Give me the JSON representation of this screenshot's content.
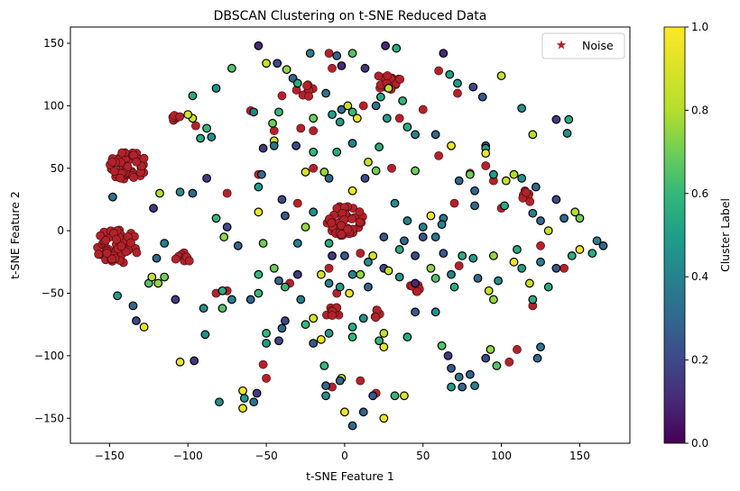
{
  "chart_data": {
    "type": "scatter",
    "title": "DBSCAN Clustering on t-SNE Reduced Data",
    "xlabel": "t-SNE Feature 1",
    "ylabel": "t-SNE Feature 2",
    "xlim": [
      -175,
      182
    ],
    "ylim": [
      -170,
      163
    ],
    "x_ticks": [
      -150,
      -100,
      -50,
      0,
      50,
      100,
      150
    ],
    "x_tick_labels": [
      "−150",
      "−100",
      "−50",
      "0",
      "50",
      "100",
      "150"
    ],
    "y_ticks": [
      -150,
      -100,
      -50,
      0,
      50,
      100,
      150
    ],
    "y_tick_labels": [
      "−150",
      "−100",
      "−50",
      "0",
      "50",
      "100",
      "150"
    ],
    "grid": false,
    "legend": {
      "position": "top-right",
      "entries": [
        {
          "label": "Noise",
          "marker": "star",
          "color": "#b2222a"
        }
      ]
    },
    "colorbar": {
      "label": "Cluster Label",
      "range": [
        0,
        1
      ],
      "ticks": [
        0,
        0.2,
        0.4,
        0.6,
        0.8,
        1
      ],
      "tick_labels": [
        "0.0",
        "0.2",
        "0.4",
        "0.6",
        "0.8",
        "1.0"
      ],
      "colormap": "viridis"
    },
    "noise_color": "#b2222a",
    "noise_clusters": [
      {
        "center": [
          -138,
          52
        ],
        "spread": 12,
        "count": 55
      },
      {
        "center": [
          -145,
          -12
        ],
        "spread": 14,
        "count": 55
      },
      {
        "center": [
          0,
          8
        ],
        "spread": 12,
        "count": 55
      },
      {
        "center": [
          28,
          120
        ],
        "spread": 8,
        "count": 18
      },
      {
        "center": [
          -25,
          112
        ],
        "spread": 6,
        "count": 10
      },
      {
        "center": [
          -103,
          -22
        ],
        "spread": 5,
        "count": 10
      },
      {
        "center": [
          118,
          28
        ],
        "spread": 5,
        "count": 9
      },
      {
        "center": [
          45,
          -46
        ],
        "spread": 4,
        "count": 7
      },
      {
        "center": [
          -8,
          -65
        ],
        "spread": 5,
        "count": 9
      },
      {
        "center": [
          20,
          -66
        ],
        "spread": 4,
        "count": 6
      },
      {
        "center": [
          -108,
          92
        ],
        "spread": 4,
        "count": 6
      }
    ],
    "noise_points": [
      [
        -10,
        142
      ],
      [
        -8,
        130
      ],
      [
        12,
        100
      ],
      [
        35,
        90
      ],
      [
        60,
        128
      ],
      [
        72,
        110
      ],
      [
        95,
        40
      ],
      [
        140,
        -30
      ],
      [
        -75,
        30
      ],
      [
        -20,
        50
      ],
      [
        30,
        50
      ],
      [
        -30,
        22
      ],
      [
        -10,
        -30
      ],
      [
        -5,
        -50
      ],
      [
        10,
        -120
      ],
      [
        20,
        -130
      ],
      [
        -8,
        -125
      ],
      [
        -50,
        -118
      ],
      [
        -52,
        -107
      ],
      [
        -55,
        45
      ],
      [
        -60,
        96
      ],
      [
        -45,
        80
      ],
      [
        -40,
        108
      ],
      [
        -28,
        82
      ],
      [
        105,
        -105
      ],
      [
        110,
        -95
      ],
      [
        120,
        -60
      ],
      [
        -95,
        84
      ],
      [
        80,
        46
      ],
      [
        90,
        52
      ],
      [
        -75,
        -48
      ],
      [
        -82,
        -50
      ],
      [
        50,
        97
      ],
      [
        60,
        60
      ],
      [
        73,
        -28
      ],
      [
        -20,
        80
      ],
      [
        -35,
        -42
      ],
      [
        10,
        -18
      ],
      [
        70,
        22
      ],
      [
        100,
        18
      ],
      [
        125,
        -12
      ]
    ],
    "cluster_points": [
      [
        -55,
        148,
        0.1
      ],
      [
        -43,
        134,
        0.2
      ],
      [
        -37,
        129,
        0.75
      ],
      [
        -33,
        122,
        0.3
      ],
      [
        -30,
        118,
        0.55
      ],
      [
        -50,
        134,
        0.85
      ],
      [
        -72,
        130,
        0.65
      ],
      [
        -82,
        114,
        0.45
      ],
      [
        -97,
        108,
        0.55
      ],
      [
        -88,
        82,
        0.6
      ],
      [
        -97,
        90,
        0.85
      ],
      [
        -85,
        75,
        0.45
      ],
      [
        -100,
        93,
        0.9
      ],
      [
        -92,
        74,
        0.55
      ],
      [
        -58,
        95,
        0.4
      ],
      [
        -42,
        95,
        0.6
      ],
      [
        -46,
        86,
        0.7
      ],
      [
        -45,
        72,
        0.85
      ],
      [
        -52,
        66,
        0.15
      ],
      [
        -31,
        68,
        0.2
      ],
      [
        -22,
        142,
        0.4
      ],
      [
        -5,
        140,
        0.3
      ],
      [
        -2,
        132,
        0.1
      ],
      [
        5,
        142,
        0.65
      ],
      [
        13,
        130,
        0.15
      ],
      [
        33,
        146,
        0.55
      ],
      [
        26,
        148,
        0.1
      ],
      [
        -12,
        110,
        0.35
      ],
      [
        -2,
        97,
        0.3
      ],
      [
        2,
        100,
        0.85
      ],
      [
        5,
        95,
        0.6
      ],
      [
        -8,
        93,
        0.5
      ],
      [
        -20,
        90,
        0.7
      ],
      [
        8,
        90,
        0.95
      ],
      [
        -3,
        87,
        0.5
      ],
      [
        28,
        114,
        0.8
      ],
      [
        23,
        107,
        0.55
      ],
      [
        37,
        104,
        0.6
      ],
      [
        20,
        100,
        0.35
      ],
      [
        27,
        90,
        0.5
      ],
      [
        40,
        83,
        0.55
      ],
      [
        63,
        142,
        0.1
      ],
      [
        67,
        125,
        0.5
      ],
      [
        72,
        118,
        0.5
      ],
      [
        82,
        115,
        0.2
      ],
      [
        100,
        124,
        0.85
      ],
      [
        88,
        107,
        0.25
      ],
      [
        113,
        98,
        0.45
      ],
      [
        135,
        89,
        0.15
      ],
      [
        143,
        89,
        0.55
      ],
      [
        142,
        78,
        0.45
      ],
      [
        120,
        77,
        0.8
      ],
      [
        68,
        68,
        0.95
      ],
      [
        90,
        68,
        0.3
      ],
      [
        90,
        66,
        0.5
      ],
      [
        90,
        62,
        0.95
      ],
      [
        58,
        77,
        0.3
      ],
      [
        45,
        77,
        0.4
      ],
      [
        22,
        67,
        0.55
      ],
      [
        15,
        55,
        0.85
      ],
      [
        -5,
        63,
        0.55
      ],
      [
        -20,
        63,
        0.6
      ],
      [
        5,
        70,
        0.4
      ],
      [
        -10,
        42,
        0.3
      ],
      [
        -13,
        47,
        0.75
      ],
      [
        -25,
        47,
        0.9
      ],
      [
        13,
        42,
        0.2
      ],
      [
        45,
        48,
        0.7
      ],
      [
        20,
        48,
        0.7
      ],
      [
        32,
        22,
        0.45
      ],
      [
        -40,
        25,
        0.2
      ],
      [
        -38,
        12,
        0.25
      ],
      [
        -20,
        15,
        0.45
      ],
      [
        -25,
        3,
        0.75
      ],
      [
        -55,
        15,
        0.95
      ],
      [
        -52,
        -10,
        0.7
      ],
      [
        -55,
        35,
        0.5
      ],
      [
        -53,
        45,
        0.3
      ],
      [
        -45,
        68,
        0.35
      ],
      [
        -75,
        3,
        0.2
      ],
      [
        -82,
        10,
        0.6
      ],
      [
        -77,
        -5,
        0.75
      ],
      [
        -68,
        -12,
        0.3
      ],
      [
        -55,
        -35,
        0.6
      ],
      [
        -45,
        -30,
        0.7
      ],
      [
        -38,
        -45,
        0.6
      ],
      [
        -30,
        -10,
        0.4
      ],
      [
        -28,
        -55,
        0.4
      ],
      [
        -15,
        -35,
        0.9
      ],
      [
        -3,
        -45,
        0.5
      ],
      [
        -10,
        -42,
        0.4
      ],
      [
        5,
        -35,
        0.4
      ],
      [
        10,
        -35,
        0.75
      ],
      [
        15,
        -45,
        0.3
      ],
      [
        3,
        -50,
        0.95
      ],
      [
        25,
        -30,
        0.2
      ],
      [
        35,
        -37,
        0.5
      ],
      [
        45,
        -42,
        0.1
      ],
      [
        38,
        -8,
        0.3
      ],
      [
        28,
        -32,
        0.85
      ],
      [
        55,
        -30,
        0.75
      ],
      [
        63,
        -18,
        0.25
      ],
      [
        58,
        -38,
        0.65
      ],
      [
        75,
        -20,
        0.55
      ],
      [
        68,
        -35,
        0.4
      ],
      [
        82,
        -22,
        0.5
      ],
      [
        85,
        -38,
        0.3
      ],
      [
        95,
        -20,
        0.75
      ],
      [
        98,
        -40,
        0.45
      ],
      [
        110,
        -15,
        0.55
      ],
      [
        113,
        -30,
        0.5
      ],
      [
        108,
        -25,
        0.95
      ],
      [
        125,
        -25,
        0.4
      ],
      [
        118,
        -42,
        0.85
      ],
      [
        120,
        -55,
        0.55
      ],
      [
        95,
        -55,
        0.75
      ],
      [
        92,
        -48,
        0.85
      ],
      [
        70,
        -45,
        0.55
      ],
      [
        58,
        -65,
        0.45
      ],
      [
        45,
        -65,
        0.25
      ],
      [
        40,
        -85,
        0.55
      ],
      [
        12,
        -70,
        0.45
      ],
      [
        5,
        -77,
        0.55
      ],
      [
        5,
        -85,
        0.6
      ],
      [
        -10,
        -82,
        0.5
      ],
      [
        -25,
        -75,
        0.6
      ],
      [
        -20,
        -70,
        0.9
      ],
      [
        -20,
        -90,
        0.25
      ],
      [
        -38,
        -72,
        0.2
      ],
      [
        -40,
        -78,
        0.3
      ],
      [
        -42,
        -88,
        0.2
      ],
      [
        -50,
        -82,
        0.6
      ],
      [
        -50,
        -90,
        0.5
      ],
      [
        -78,
        -62,
        0.65
      ],
      [
        -72,
        -55,
        0.4
      ],
      [
        -78,
        -48,
        0.55
      ],
      [
        -90,
        -62,
        0.45
      ],
      [
        -108,
        -55,
        0.15
      ],
      [
        -115,
        -37,
        0.7
      ],
      [
        -119,
        -42,
        0.75
      ],
      [
        -125,
        -42,
        0.65
      ],
      [
        -123,
        -37,
        0.85
      ],
      [
        -120,
        -22,
        0.3
      ],
      [
        -115,
        -10,
        0.4
      ],
      [
        -133,
        -72,
        0.2
      ],
      [
        -135,
        -60,
        0.3
      ],
      [
        -128,
        -77,
        0.95
      ],
      [
        -145,
        -52,
        0.5
      ],
      [
        -148,
        27,
        0.35
      ],
      [
        -118,
        30,
        0.8
      ],
      [
        -122,
        18,
        0.15
      ],
      [
        -105,
        31,
        0.45
      ],
      [
        -97,
        30,
        0.3
      ],
      [
        -88,
        42,
        0.15
      ],
      [
        -105,
        -105,
        0.95
      ],
      [
        -96,
        -104,
        0.15
      ],
      [
        -89,
        -83,
        0.45
      ],
      [
        -58,
        -137,
        0.35
      ],
      [
        -56,
        -130,
        0.15
      ],
      [
        -64,
        -134,
        0.5
      ],
      [
        -65,
        -128,
        0.95
      ],
      [
        -65,
        -142,
        0.95
      ],
      [
        -80,
        -137,
        0.45
      ],
      [
        -12,
        -124,
        0.3
      ],
      [
        -12,
        -132,
        0.45
      ],
      [
        -2,
        -118,
        0.85
      ],
      [
        0,
        -145,
        0.95
      ],
      [
        5,
        -156,
        0.3
      ],
      [
        12,
        -145,
        0.3
      ],
      [
        18,
        -132,
        0.25
      ],
      [
        25,
        -150,
        0.95
      ],
      [
        32,
        -132,
        0.6
      ],
      [
        38,
        -132,
        0.9
      ],
      [
        -13,
        -108,
        0.6
      ],
      [
        -3,
        -120,
        0.3
      ],
      [
        -15,
        -87,
        0.95
      ],
      [
        25,
        -93,
        0.95
      ],
      [
        25,
        -82,
        0.85
      ],
      [
        22,
        -88,
        0.6
      ],
      [
        62,
        -92,
        0.65
      ],
      [
        66,
        -100,
        0.15
      ],
      [
        68,
        -110,
        0.25
      ],
      [
        73,
        -117,
        0.35
      ],
      [
        68,
        -125,
        0.5
      ],
      [
        75,
        -125,
        0.3
      ],
      [
        80,
        -115,
        0.3
      ],
      [
        83,
        -124,
        0.4
      ],
      [
        93,
        -95,
        0.75
      ],
      [
        97,
        -108,
        0.65
      ],
      [
        90,
        -102,
        0.2
      ],
      [
        123,
        -102,
        0.3
      ],
      [
        125,
        -93,
        0.35
      ],
      [
        130,
        -45,
        0.55
      ],
      [
        135,
        -30,
        0.25
      ],
      [
        145,
        -20,
        0.55
      ],
      [
        150,
        -15,
        0.95
      ],
      [
        158,
        -18,
        0.55
      ],
      [
        161,
        -8,
        0.4
      ],
      [
        165,
        -12,
        0.3
      ],
      [
        147,
        15,
        0.8
      ],
      [
        150,
        10,
        0.7
      ],
      [
        140,
        10,
        0.3
      ],
      [
        125,
        8,
        0.3
      ],
      [
        130,
        0,
        0.85
      ],
      [
        120,
        14,
        0.4
      ],
      [
        135,
        25,
        0.2
      ],
      [
        122,
        35,
        0.3
      ],
      [
        113,
        42,
        0.45
      ],
      [
        108,
        45,
        0.8
      ],
      [
        103,
        40,
        0.85
      ],
      [
        95,
        45,
        0.5
      ],
      [
        83,
        32,
        0.3
      ],
      [
        73,
        40,
        0.3
      ],
      [
        80,
        45,
        0.7
      ],
      [
        102,
        20,
        0.55
      ],
      [
        83,
        20,
        0.3
      ],
      [
        63,
        10,
        0.35
      ],
      [
        55,
        12,
        0.95
      ],
      [
        50,
        3,
        0.4
      ],
      [
        50,
        -5,
        0.25
      ],
      [
        58,
        -5,
        0.35
      ],
      [
        62,
        5,
        0.4
      ],
      [
        40,
        8,
        0.4
      ],
      [
        45,
        -20,
        0.2
      ],
      [
        35,
        -15,
        0.55
      ],
      [
        25,
        -5,
        0.25
      ],
      [
        18,
        -20,
        0.9
      ],
      [
        15,
        -25,
        0.45
      ],
      [
        5,
        32,
        0.95
      ],
      [
        -10,
        -10,
        0.55
      ],
      [
        0,
        -20,
        0.25
      ],
      [
        -8,
        -20,
        0.15
      ],
      [
        -30,
        -35,
        0.15
      ],
      [
        -42,
        -40,
        0.3
      ],
      [
        -55,
        -50,
        0.6
      ],
      [
        -60,
        -55,
        0.3
      ]
    ]
  }
}
